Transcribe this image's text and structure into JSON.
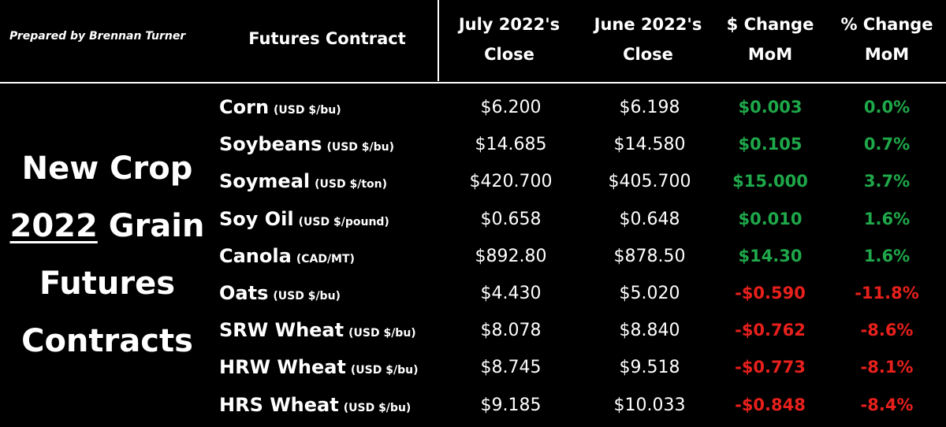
{
  "header": {
    "prepared_by": "Prepared by Brennan Turner",
    "futures_contract": "Futures Contract",
    "july_line1": "July 2022's",
    "july_line2": "Close",
    "june_line1": "June 2022's",
    "june_line2": "Close",
    "dollar_line1": "$ Change",
    "dollar_line2": "MoM",
    "pct_line1": "% Change",
    "pct_line2": "MoM"
  },
  "side_title": {
    "line1": "New Crop",
    "line2_year": "2022",
    "line2_rest": "Grain",
    "line3": "Futures",
    "line4": "Contracts"
  },
  "colors": {
    "positive": "#1fa84a",
    "negative": "#e8201c",
    "background": "#000000",
    "text": "#ffffff"
  },
  "rows": [
    {
      "name": "Corn",
      "unit": "(USD $/bu)",
      "july": "$6.200",
      "june": "$6.198",
      "dollar_change": "$0.003",
      "pct_change": "0.0%",
      "direction": "pos"
    },
    {
      "name": "Soybeans",
      "unit": "(USD $/bu)",
      "july": "$14.685",
      "june": "$14.580",
      "dollar_change": "$0.105",
      "pct_change": "0.7%",
      "direction": "pos"
    },
    {
      "name": "Soymeal",
      "unit": "(USD $/ton)",
      "july": "$420.700",
      "june": "$405.700",
      "dollar_change": "$15.000",
      "pct_change": "3.7%",
      "direction": "pos"
    },
    {
      "name": "Soy Oil",
      "unit": "(USD $/pound)",
      "july": "$0.658",
      "june": "$0.648",
      "dollar_change": "$0.010",
      "pct_change": "1.6%",
      "direction": "pos"
    },
    {
      "name": "Canola",
      "unit": "(CAD/MT)",
      "july": "$892.80",
      "june": "$878.50",
      "dollar_change": "$14.30",
      "pct_change": "1.6%",
      "direction": "pos"
    },
    {
      "name": "Oats",
      "unit": "(USD $/bu)",
      "july": "$4.430",
      "june": "$5.020",
      "dollar_change": "-$0.590",
      "pct_change": "-11.8%",
      "direction": "neg"
    },
    {
      "name": "SRW Wheat",
      "unit": "(USD $/bu)",
      "july": "$8.078",
      "june": "$8.840",
      "dollar_change": "-$0.762",
      "pct_change": "-8.6%",
      "direction": "neg"
    },
    {
      "name": "HRW Wheat",
      "unit": "(USD $/bu)",
      "july": "$8.745",
      "june": "$9.518",
      "dollar_change": "-$0.773",
      "pct_change": "-8.1%",
      "direction": "neg"
    },
    {
      "name": "HRS Wheat",
      "unit": "(USD $/bu)",
      "july": "$9.185",
      "june": "$10.033",
      "dollar_change": "-$0.848",
      "pct_change": "-8.4%",
      "direction": "neg"
    }
  ]
}
